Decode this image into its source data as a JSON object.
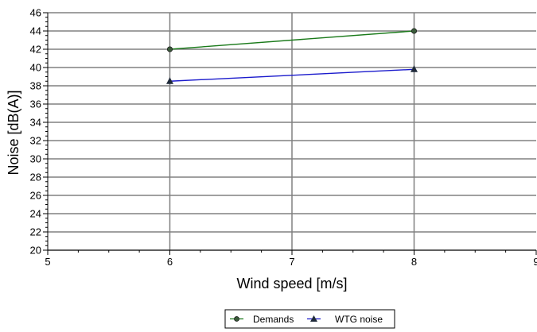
{
  "chart_data": {
    "type": "line",
    "xlabel": "Wind speed [m/s]",
    "ylabel": "Noise [dB(A)]",
    "xlim": [
      5,
      9
    ],
    "ylim": [
      20,
      46
    ],
    "xticks": [
      "5",
      "6",
      "7",
      "8",
      "9"
    ],
    "yticks": [
      "20",
      "22",
      "24",
      "26",
      "28",
      "30",
      "32",
      "34",
      "36",
      "38",
      "40",
      "42",
      "44",
      "46"
    ],
    "grid": true,
    "legend_position": "bottom-center",
    "series": [
      {
        "name": "Demands",
        "marker": "circle",
        "color": "#1a7a1a",
        "marker_color": "#3a5a3a",
        "x": [
          6,
          8
        ],
        "y": [
          42.0,
          44.0
        ]
      },
      {
        "name": "WTG noise",
        "marker": "triangle",
        "color": "#1a1acc",
        "marker_color": "#1f2a3a",
        "x": [
          6,
          8
        ],
        "y": [
          38.5,
          39.8
        ]
      }
    ]
  }
}
